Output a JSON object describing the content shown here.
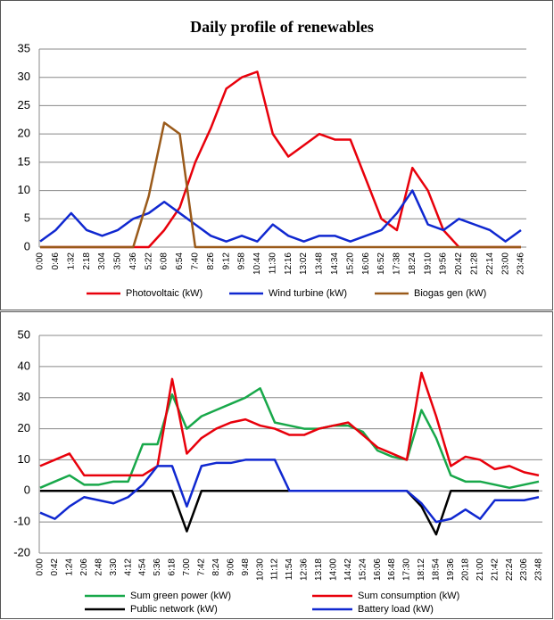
{
  "chart_data": [
    {
      "type": "line",
      "title": "Daily profile of renewables",
      "categories": [
        "0:00",
        "0:46",
        "1:32",
        "2:18",
        "3:04",
        "3:50",
        "4:36",
        "5:22",
        "6:08",
        "6:54",
        "7:40",
        "8:26",
        "9:12",
        "9:58",
        "10:44",
        "11:30",
        "12:16",
        "13:02",
        "13:48",
        "14:34",
        "15:20",
        "16:06",
        "16:52",
        "17:38",
        "18:24",
        "19:10",
        "19:56",
        "20:42",
        "21:28",
        "22:14",
        "23:00",
        "23:46"
      ],
      "series": [
        {
          "name": "Photovoltaic (kW)",
          "color": "#e8000b",
          "values": [
            0,
            0,
            0,
            0,
            0,
            0,
            0,
            0,
            3,
            7,
            15,
            21,
            28,
            30,
            31,
            20,
            16,
            18,
            20,
            19,
            19,
            12,
            5,
            3,
            14,
            10,
            3,
            0,
            0,
            0,
            0,
            0
          ]
        },
        {
          "name": "Wind turbine (kW)",
          "color": "#1028d0",
          "values": [
            1,
            3,
            6,
            3,
            2,
            3,
            5,
            6,
            8,
            6,
            4,
            2,
            1,
            2,
            1,
            4,
            2,
            1,
            2,
            2,
            1,
            2,
            3,
            6,
            10,
            4,
            3,
            5,
            4,
            3,
            1,
            3
          ]
        },
        {
          "name": "Biogas gen (kW)",
          "color": "#9a5a1a",
          "values": [
            0,
            0,
            0,
            0,
            0,
            0,
            0,
            9,
            22,
            20,
            0,
            0,
            0,
            0,
            0,
            0,
            0,
            0,
            0,
            0,
            0,
            0,
            0,
            0,
            0,
            0,
            0,
            0,
            0,
            0,
            0,
            0
          ]
        }
      ],
      "ylim": [
        0,
        35
      ],
      "yticks": [
        0,
        5,
        10,
        15,
        20,
        25,
        30,
        35
      ],
      "grid": true
    },
    {
      "type": "line",
      "categories": [
        "0:00",
        "0:42",
        "1:24",
        "2:06",
        "2:48",
        "3:30",
        "4:12",
        "4:54",
        "5:36",
        "6:18",
        "7:00",
        "7:42",
        "8:24",
        "9:06",
        "9:48",
        "10:30",
        "11:12",
        "11:54",
        "12:36",
        "13:18",
        "14:00",
        "14:42",
        "15:24",
        "16:06",
        "16:48",
        "17:30",
        "18:12",
        "18:54",
        "19:36",
        "20:18",
        "21:00",
        "21:42",
        "22:24",
        "23:06",
        "23:48"
      ],
      "series": [
        {
          "name": "Sum green power (kW)",
          "color": "#18a84a",
          "values": [
            1,
            3,
            5,
            2,
            2,
            3,
            3,
            15,
            15,
            31,
            20,
            24,
            26,
            28,
            30,
            33,
            22,
            21,
            20,
            20,
            21,
            21,
            19,
            13,
            11,
            10,
            26,
            17,
            5,
            3,
            3,
            2,
            1,
            2,
            3
          ]
        },
        {
          "name": "Sum consumption (kW)",
          "color": "#e8000b",
          "values": [
            8,
            10,
            12,
            5,
            5,
            5,
            5,
            5,
            8,
            36,
            12,
            17,
            20,
            22,
            23,
            21,
            20,
            18,
            18,
            20,
            21,
            22,
            18,
            14,
            12,
            10,
            38,
            24,
            8,
            11,
            10,
            7,
            8,
            6,
            5
          ]
        },
        {
          "name": "Public network (kW)",
          "color": "#000000",
          "values": [
            0,
            0,
            0,
            0,
            0,
            0,
            0,
            0,
            0,
            0,
            -13,
            0,
            0,
            0,
            0,
            0,
            0,
            0,
            0,
            0,
            0,
            0,
            0,
            0,
            0,
            0,
            -5,
            -14,
            0,
            0,
            0,
            0,
            0,
            0,
            0
          ]
        },
        {
          "name": "Battery load (kW)",
          "color": "#1028d0",
          "values": [
            -7,
            -9,
            -5,
            -2,
            -3,
            -4,
            -2,
            2,
            8,
            8,
            -5,
            8,
            9,
            9,
            10,
            10,
            10,
            0,
            0,
            0,
            0,
            0,
            0,
            0,
            0,
            0,
            -4,
            -10,
            -9,
            -6,
            -9,
            -3,
            -3,
            -3,
            -2
          ]
        }
      ],
      "ylim": [
        -20,
        50
      ],
      "yticks": [
        -20,
        -10,
        0,
        10,
        20,
        30,
        40,
        50
      ],
      "grid": true
    }
  ]
}
